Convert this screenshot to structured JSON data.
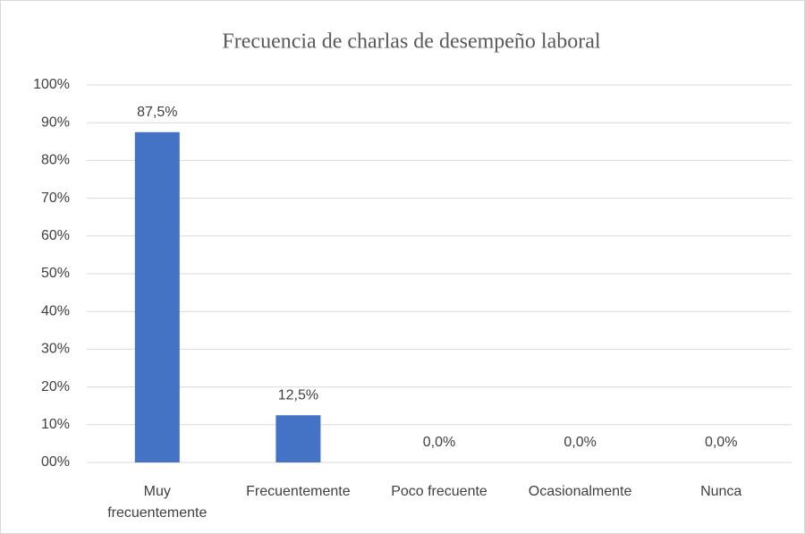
{
  "chart_data": {
    "type": "bar",
    "title": "Frecuencia de charlas de desempeño laboral",
    "categories": [
      "Muy frecuentemente",
      "Frecuentemente",
      "Poco frecuente",
      "Ocasionalmente",
      "Nunca"
    ],
    "values": [
      87.5,
      12.5,
      0,
      0,
      0
    ],
    "value_labels": [
      "87,5%",
      "12,5%",
      "0,0%",
      "0,0%",
      "0,0%"
    ],
    "color": "#4472c4",
    "ylim": [
      0,
      100
    ],
    "yticks": [
      {
        "value": 0,
        "label": "00%"
      },
      {
        "value": 10,
        "label": "10%"
      },
      {
        "value": 20,
        "label": "20%"
      },
      {
        "value": 30,
        "label": "30%"
      },
      {
        "value": 40,
        "label": "40%"
      },
      {
        "value": 50,
        "label": "50%"
      },
      {
        "value": 60,
        "label": "60%"
      },
      {
        "value": 70,
        "label": "70%"
      },
      {
        "value": 80,
        "label": "80%"
      },
      {
        "value": 90,
        "label": "90%"
      },
      {
        "value": 100,
        "label": "100%"
      }
    ],
    "grid": true
  }
}
